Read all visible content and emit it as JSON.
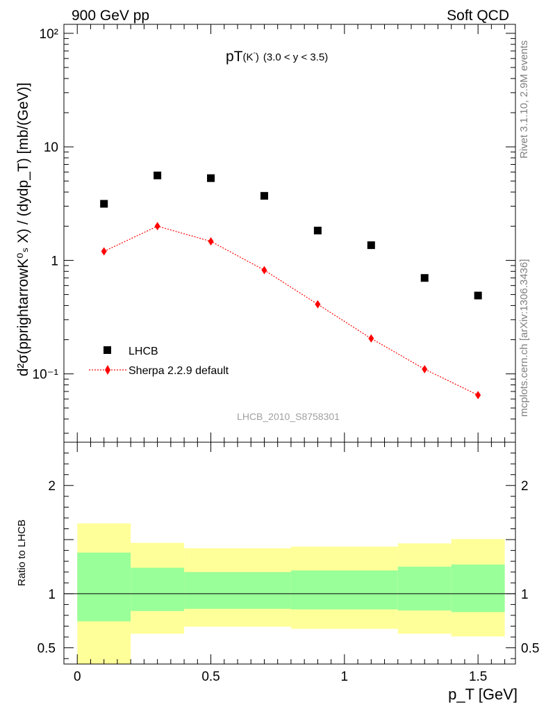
{
  "header": {
    "left": "900 GeV pp",
    "right": "Soft QCD"
  },
  "side_labels": {
    "rivet": "Rivet 3.1.10,  2.9M events",
    "mcplots": "mcplots.cern.ch [arXiv:1306.3436]"
  },
  "watermark": "LHCB_2010_S8758301",
  "colors": {
    "data": "#000000",
    "mc": "#ff0000",
    "band_inner": "#99ff99",
    "band_outer": "#ffff99"
  },
  "chart_data": [
    {
      "type": "scatter",
      "title_main": "pT",
      "title_particle": "(K",
      "title_sup": "-",
      "title_close": ")",
      "title_range": "(3.0 < y < 3.5)",
      "ylabel": "d²σ(pprightarrowK⁰ₛ X) / (dydp_T) [mb/(GeV)]",
      "yscale": "log",
      "xlim": [
        -0.05,
        1.64
      ],
      "ylim": [
        0.025,
        120
      ],
      "y_ticks": [
        "10⁻¹",
        "1",
        "10",
        "10²"
      ],
      "legend_position": "bottom-left",
      "series": [
        {
          "name": "LHCB",
          "marker": "square",
          "x": [
            0.1,
            0.3,
            0.5,
            0.7,
            0.9,
            1.1,
            1.3,
            1.5
          ],
          "y": [
            3.15,
            5.6,
            5.3,
            3.7,
            1.83,
            1.36,
            0.7,
            0.49
          ]
        },
        {
          "name": "Sherpa 2.2.9 default",
          "marker": "diamond",
          "line": "dotted",
          "x": [
            0.1,
            0.3,
            0.5,
            0.7,
            0.9,
            1.1,
            1.3,
            1.5
          ],
          "y": [
            1.2,
            2.0,
            1.47,
            0.82,
            0.41,
            0.205,
            0.11,
            0.065
          ]
        }
      ]
    },
    {
      "type": "ratio",
      "ylabel": "Ratio to LHCB",
      "xlabel": "p_T [GeV]",
      "x_ticks": [
        "0",
        "0.5",
        "1",
        "1.5"
      ],
      "y_ticks": [
        "0.5",
        "1",
        "2"
      ],
      "xlim": [
        -0.05,
        1.64
      ],
      "ylim": [
        0.35,
        2.4
      ],
      "bins": [
        {
          "xlo": 0.0,
          "xhi": 0.2,
          "inner": [
            0.745,
            1.38
          ],
          "outer": [
            0.35,
            1.65
          ]
        },
        {
          "xlo": 0.2,
          "xhi": 0.4,
          "inner": [
            0.84,
            1.24
          ],
          "outer": [
            0.63,
            1.47
          ]
        },
        {
          "xlo": 0.4,
          "xhi": 0.8,
          "inner": [
            0.86,
            1.2
          ],
          "outer": [
            0.695,
            1.42
          ]
        },
        {
          "xlo": 0.8,
          "xhi": 1.2,
          "inner": [
            0.855,
            1.215
          ],
          "outer": [
            0.675,
            1.435
          ]
        },
        {
          "xlo": 1.2,
          "xhi": 1.4,
          "inner": [
            0.845,
            1.25
          ],
          "outer": [
            0.63,
            1.465
          ]
        },
        {
          "xlo": 1.4,
          "xhi": 1.6,
          "inner": [
            0.83,
            1.27
          ],
          "outer": [
            0.605,
            1.505
          ]
        }
      ]
    }
  ]
}
